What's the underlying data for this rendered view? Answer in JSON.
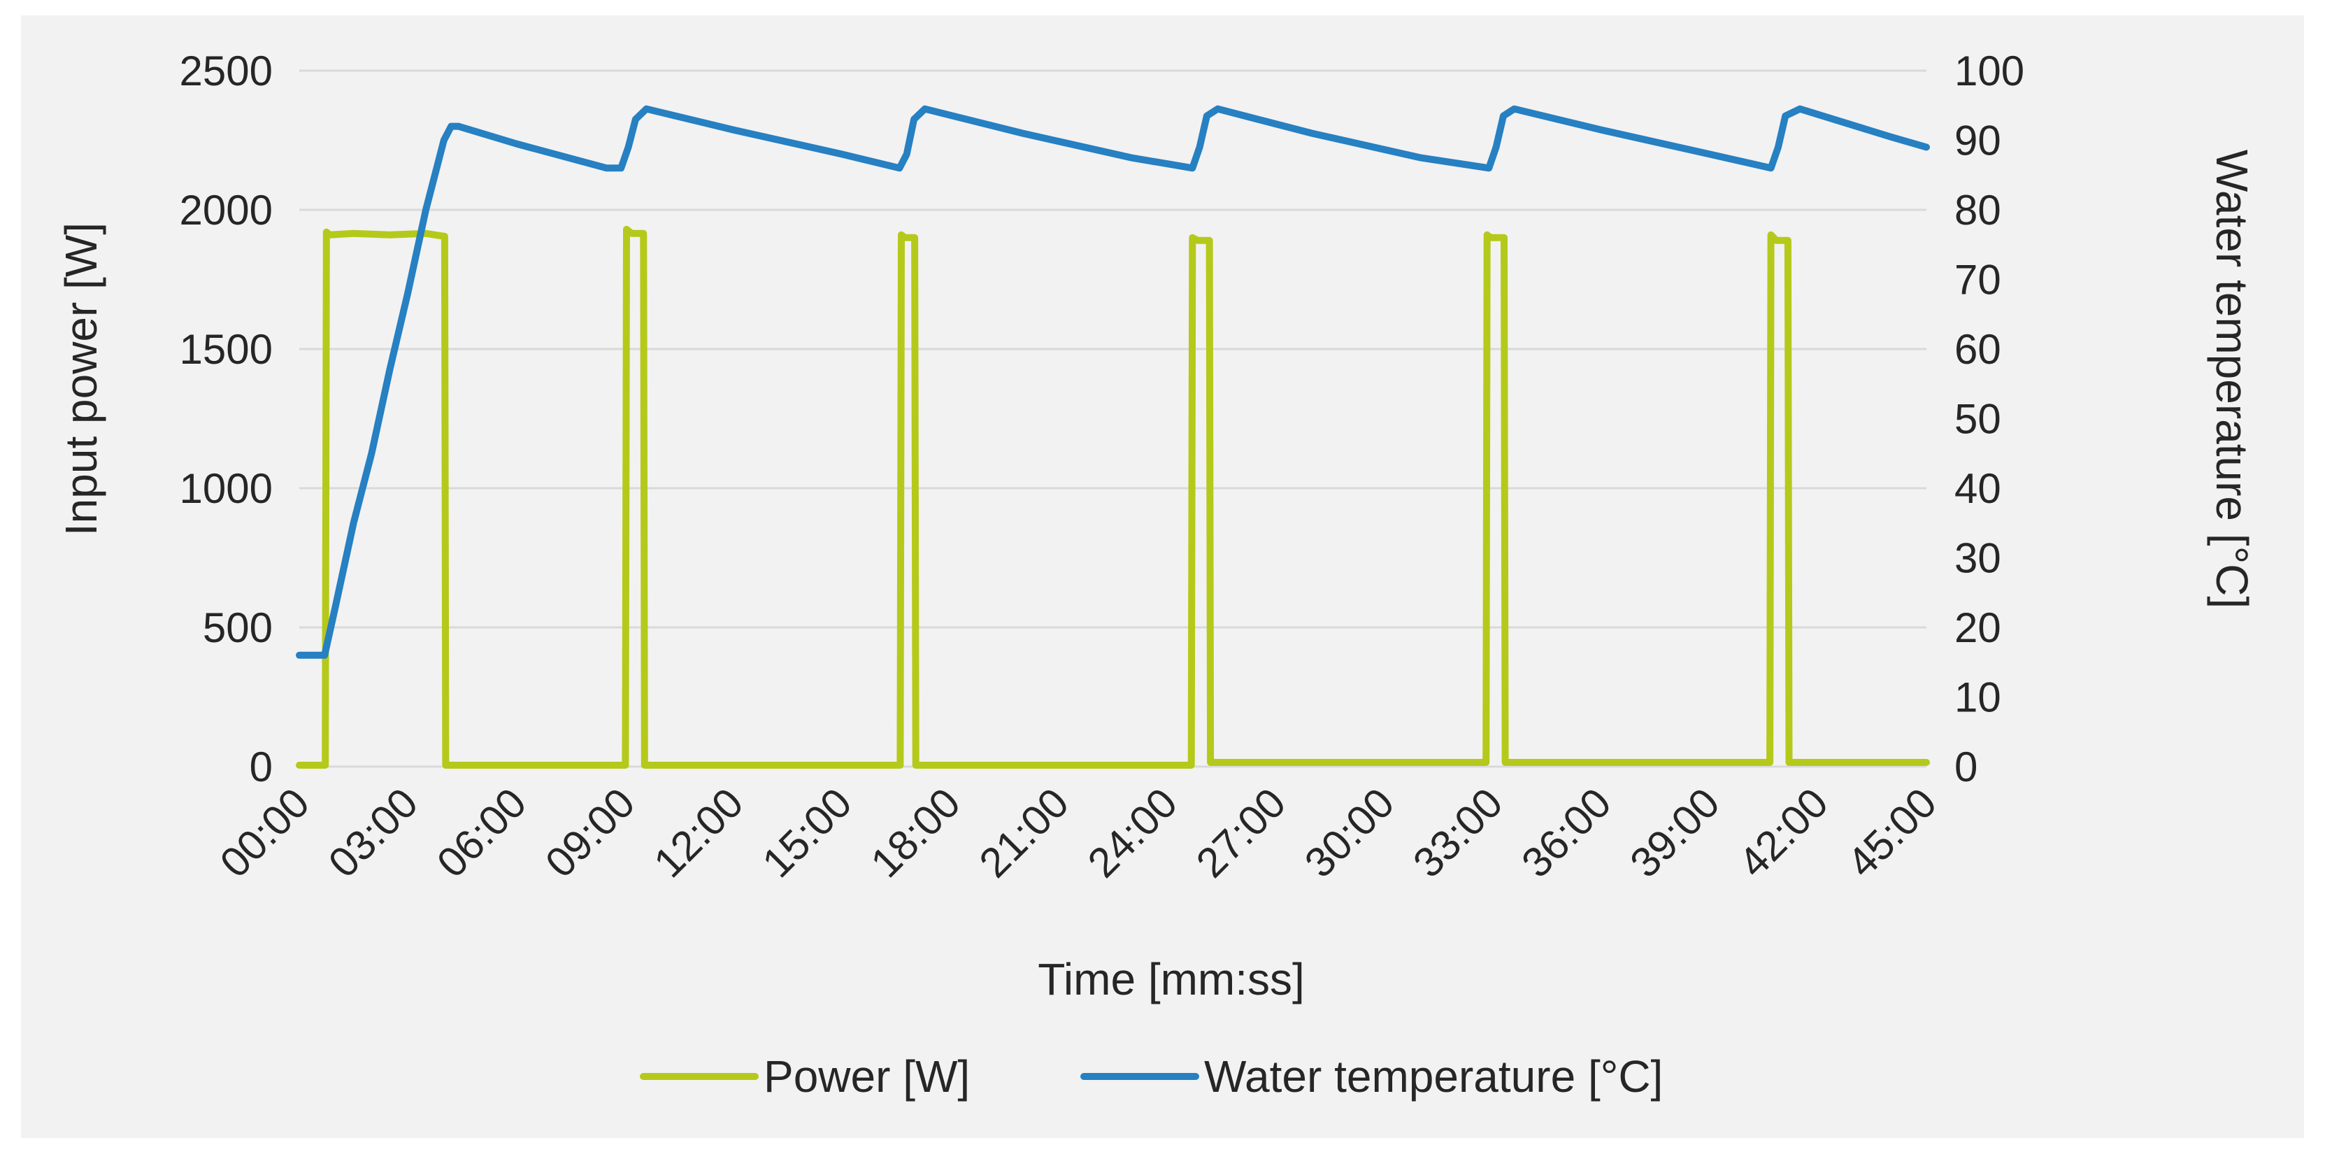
{
  "chart_data": {
    "type": "line",
    "title": "",
    "xlabel": "Time [mm:ss]",
    "ylabel": "Input power [W]",
    "y2label": "Water temperature [°C]",
    "x_unit": "minutes",
    "xlim": [
      0,
      45
    ],
    "ylim": [
      0,
      2500
    ],
    "y2lim": [
      0,
      100
    ],
    "x_tick_values": [
      0,
      3,
      6,
      9,
      12,
      15,
      18,
      21,
      24,
      27,
      30,
      33,
      36,
      39,
      42,
      45
    ],
    "x_tick_labels": [
      "00:00",
      "03:00",
      "06:00",
      "09:00",
      "12:00",
      "15:00",
      "18:00",
      "21:00",
      "24:00",
      "27:00",
      "30:00",
      "33:00",
      "36:00",
      "39:00",
      "42:00",
      "45:00"
    ],
    "y_tick_values": [
      0,
      500,
      1000,
      1500,
      2000,
      2500
    ],
    "y_tick_labels": [
      "0",
      "500",
      "1000",
      "1500",
      "2000",
      "2500"
    ],
    "y2_tick_values": [
      0,
      10,
      20,
      30,
      40,
      50,
      60,
      70,
      80,
      90,
      100
    ],
    "y2_tick_labels": [
      "0",
      "10",
      "20",
      "30",
      "40",
      "50",
      "60",
      "70",
      "80",
      "90",
      "100"
    ],
    "grid": true,
    "legend_position": "bottom",
    "colors": {
      "power": "#b5c91a",
      "temp": "#2680c2",
      "grid": "#d9d9d9",
      "frame": "#f2f2f2"
    },
    "series": [
      {
        "name": "Power [W]",
        "axis": "left",
        "x": [
          0,
          0.72,
          0.75,
          0.85,
          1.5,
          2.5,
          3.5,
          4.0,
          4.02,
          4.05,
          9.0,
          9.02,
          9.05,
          9.2,
          9.25,
          9.5,
          9.52,
          9.55,
          16.6,
          16.62,
          16.65,
          16.75,
          16.8,
          17.0,
          17.02,
          17.05,
          24.65,
          24.67,
          24.7,
          24.85,
          24.9,
          25.15,
          25.17,
          25.2,
          26,
          32.8,
          32.82,
          32.85,
          32.95,
          33.0,
          33.3,
          33.32,
          33.35,
          34,
          40.65,
          40.67,
          40.7,
          40.85,
          40.9,
          41.15,
          41.17,
          41.2,
          45
        ],
        "values": [
          5,
          5,
          1920,
          1910,
          1915,
          1910,
          1915,
          1905,
          1905,
          5,
          5,
          5,
          1930,
          1915,
          1915,
          1915,
          1915,
          5,
          5,
          5,
          1910,
          1900,
          1900,
          1900,
          1900,
          5,
          5,
          5,
          1900,
          1890,
          1890,
          1890,
          1890,
          15,
          15,
          15,
          15,
          1910,
          1900,
          1900,
          1900,
          1900,
          15,
          15,
          15,
          15,
          1910,
          1890,
          1890,
          1890,
          1890,
          15,
          15
        ]
      },
      {
        "name": "Water temperature [°C]",
        "axis": "right",
        "x": [
          0,
          0.7,
          1.0,
          1.5,
          2.0,
          2.5,
          3.0,
          3.5,
          4.0,
          4.2,
          4.4,
          6.0,
          8.5,
          8.9,
          9.1,
          9.3,
          9.6,
          12.0,
          15.0,
          16.6,
          16.8,
          17.0,
          17.3,
          20.0,
          23.0,
          24.7,
          24.9,
          25.1,
          25.4,
          28.0,
          31.0,
          32.9,
          33.1,
          33.3,
          33.6,
          36.0,
          39.0,
          40.7,
          40.9,
          41.1,
          41.5,
          44.0,
          45.0
        ],
        "values": [
          16,
          16,
          23,
          35,
          45,
          57,
          68,
          80,
          90,
          92,
          92,
          89.5,
          86,
          86,
          89,
          93,
          94.5,
          91.5,
          88,
          86,
          88,
          93,
          94.5,
          91,
          87.5,
          86,
          89,
          93.5,
          94.5,
          91,
          87.5,
          86,
          89,
          93.5,
          94.5,
          91.5,
          88,
          86,
          89,
          93.5,
          94.5,
          90.5,
          89
        ]
      }
    ]
  }
}
